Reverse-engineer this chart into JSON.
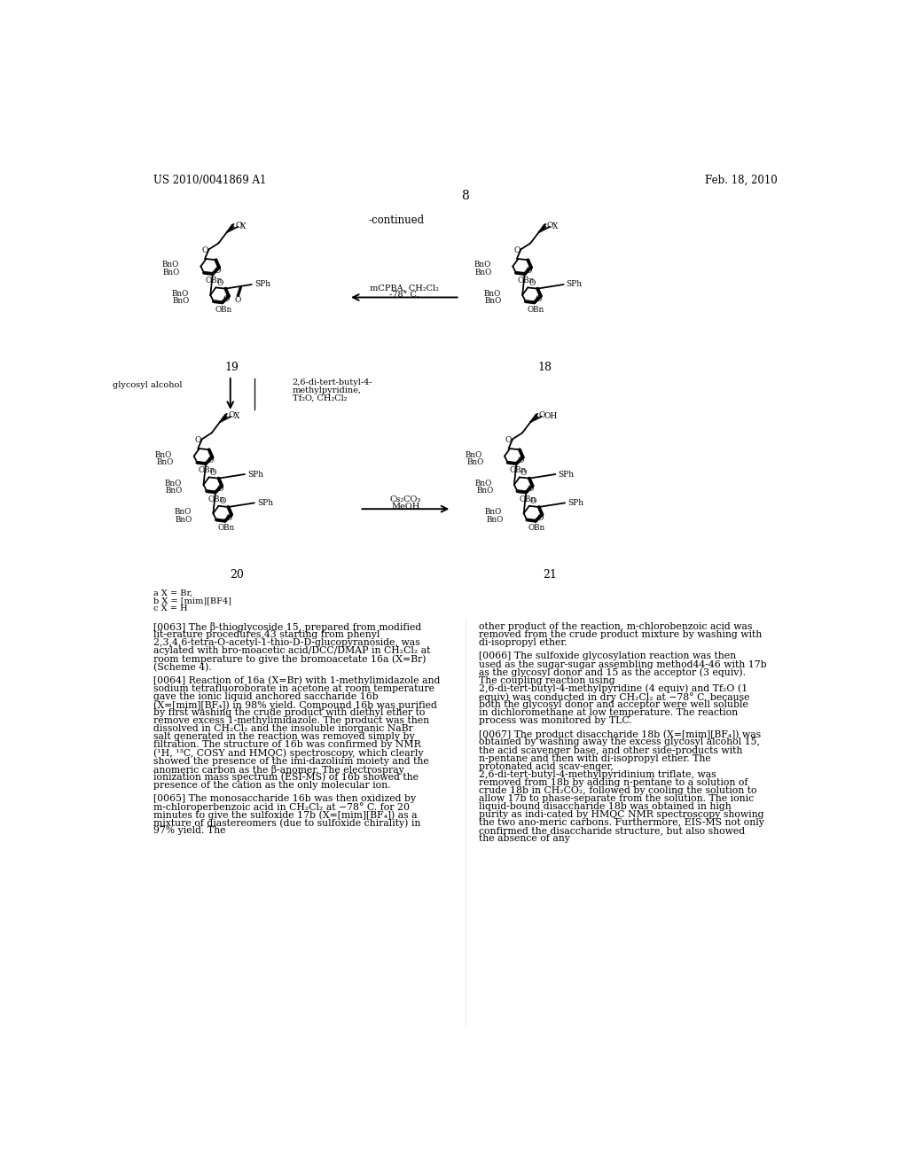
{
  "background_color": "#ffffff",
  "header_left": "US 2010/0041869 A1",
  "header_right": "Feb. 18, 2010",
  "page_number": "8",
  "continued_label": "-continued",
  "compound_19": "19",
  "compound_18": "18",
  "compound_20": "20",
  "compound_21": "21",
  "footnote_a": "a X = Br,",
  "footnote_b": "b X = [mim][BF4]",
  "footnote_c": "c X = H",
  "rxn1_line1": "mCPBA, CH₂Cl₂",
  "rxn1_line2": "-78° C.",
  "rxn2_prefix": "glycosyl alcohol",
  "rxn2_line1": "2,6-di-tert-butyl-4-",
  "rxn2_line2": "methylpyridine,",
  "rxn2_line3": "Tf₂O, CH₂Cl₂",
  "rxn3_line1": "Cs₂CO₃",
  "rxn3_line2": "MeOH",
  "para_0063_label": "[0063]",
  "para_0063": "   The β-thioglycoside 15, prepared from modified lit-erature procedures,43 starting from phenyl 2,3,4,6-tetra-O-acetyl-1-thio-D-D-glucopyranoside, was acylated with bro-moacetic acid/DCC/DMAP in CH₂Cl₂ at room temperature to give the bromoacetate 16a (X=Br) (Scheme 4).",
  "para_0064_label": "[0064]",
  "para_0064": "   Reaction of 16a (X=Br) with 1-methylimidazole and sodium tetrafluoroborate in acetone at room temperature gave the ionic liquid anchored saccharide 16b (X=[mim][BF₄]) in 98% yield. Compound 16b was purified by first washing the crude product with diethyl ether to remove excess 1-methylimidazole. The product was then dissolved in CH₂Cl₂ and the insoluble inorganic NaBr salt generated in the reaction was removed simply by filtration. The structure of 16b was confirmed by NMR (¹H, ¹³C, COSY and HMQC) spectroscopy, which clearly showed the presence of the imi-dazolium moiety and the anomeric carbon as the β-anomer. The electrospray ionization mass spectrum (ESI-MS) of 16b showed the presence of the cation as the only molecular ion.",
  "para_0065_label": "[0065]",
  "para_0065": "   The monosaccharide 16b was then oxidized by m-chloroperbenzoic acid in CH₂Cl₂ at −78° C. for 20 minutes to give the sulfoxide 17b (X=[mim][BF₄]) as a mixture of diastereomers (due to sulfoxide chirality) in 97% yield. The",
  "para_0066_label": "[0066]",
  "para_0066_text": "other product of the reaction, m-chlorobenzoic acid was removed from the crude product mixture by washing with di-isopropyl ether.",
  "para_0066b_label": "[0066]",
  "para_0066b_text": "   The sulfoxide glycosylation reaction was then used as the sugar-sugar assembling method44-46 with 17b as the glycosyl donor and 15 as the acceptor (3 equiv). The coupling reaction using 2,6-di-tert-butyl-4-methylpyridine (4 equiv) and Tf₂O (1 equiv) was conducted in dry CH₂Cl₂ at −78° C. because both the glycosyl donor and acceptor were well soluble in dichloromethane at low temperature. The reaction process was monitored by TLC.",
  "para_0067_label": "[0067]",
  "para_0067_text": "   The product disaccharide 18b (X=[mim][BF₄]) was obtained by washing away the excess glycosyl alcohol 15, the acid scavenger base, and other side-products with n-pentane and then with di-isopropyl ether. The protonated acid scav-enger, 2,6-di-tert-butyl-4-methylpyridinium triflate, was removed from 18b by adding n-pentane to a solution of crude 18b in CH₂CO₂, followed by cooling the solution to allow 17b to phase-separate from the solution. The ionic liquid-bound disaccharide 18b was obtained in high purity as indi-cated by HMQC NMR spectroscopy showing the two ano-meric carbons. Furthermore, EIS-MS not only confirmed the disaccharide structure, but also showed the absence of any"
}
